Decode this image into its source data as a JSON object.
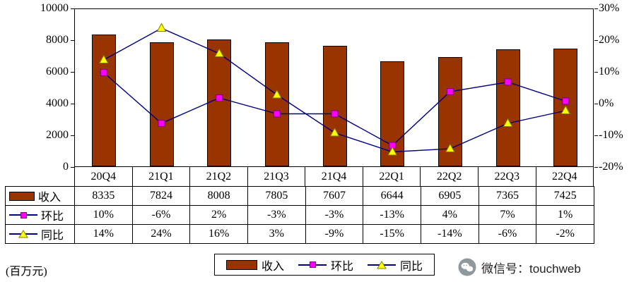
{
  "chart_data": {
    "type": "combo-bar-line",
    "categories": [
      "20Q4",
      "21Q1",
      "21Q2",
      "21Q3",
      "21Q4",
      "22Q1",
      "22Q2",
      "22Q3",
      "22Q4"
    ],
    "series": [
      {
        "name": "收入",
        "type": "bar",
        "axis": "left",
        "values": [
          8335,
          7824,
          8008,
          7805,
          7607,
          6644,
          6905,
          7365,
          7425
        ]
      },
      {
        "name": "环比",
        "type": "line",
        "axis": "right",
        "marker": "square",
        "values_pct": [
          10,
          -6,
          2,
          -3,
          -3,
          -13,
          4,
          7,
          1
        ]
      },
      {
        "name": "同比",
        "type": "line",
        "axis": "right",
        "marker": "triangle",
        "values_pct": [
          14,
          24,
          16,
          3,
          -9,
          -15,
          -14,
          -6,
          -2
        ]
      }
    ],
    "left_axis": {
      "min": 0,
      "max": 10000,
      "tick_labels_top_down": [
        "10000",
        "8000",
        "6000",
        "4000",
        "2000",
        "0"
      ]
    },
    "right_axis": {
      "min": -20,
      "max": 30,
      "tick_labels_top_down": [
        "30%",
        "20%",
        "10%",
        "0%",
        "-10%",
        "-20%"
      ]
    },
    "colors": {
      "bar": "#993300",
      "line": "#000080",
      "square": "#FF00FF",
      "triangle": "#FFFF00"
    },
    "grid": false,
    "legend_position": "bottom"
  },
  "table": {
    "rows": [
      {
        "label": "收入",
        "values": [
          "8335",
          "7824",
          "8008",
          "7805",
          "7607",
          "6644",
          "6905",
          "7365",
          "7425"
        ]
      },
      {
        "label": "环比",
        "values": [
          "10%",
          "-6%",
          "2%",
          "-3%",
          "-3%",
          "-13%",
          "4%",
          "7%",
          "1%"
        ]
      },
      {
        "label": "同比",
        "values": [
          "14%",
          "24%",
          "16%",
          "3%",
          "-9%",
          "-15%",
          "-14%",
          "-6%",
          "-2%"
        ]
      }
    ]
  },
  "legend": {
    "items": [
      {
        "label": "收入"
      },
      {
        "label": "环比"
      },
      {
        "label": "同比"
      }
    ]
  },
  "footer": {
    "unit": "(百万元)",
    "wechat": "微信号：touchweb"
  }
}
